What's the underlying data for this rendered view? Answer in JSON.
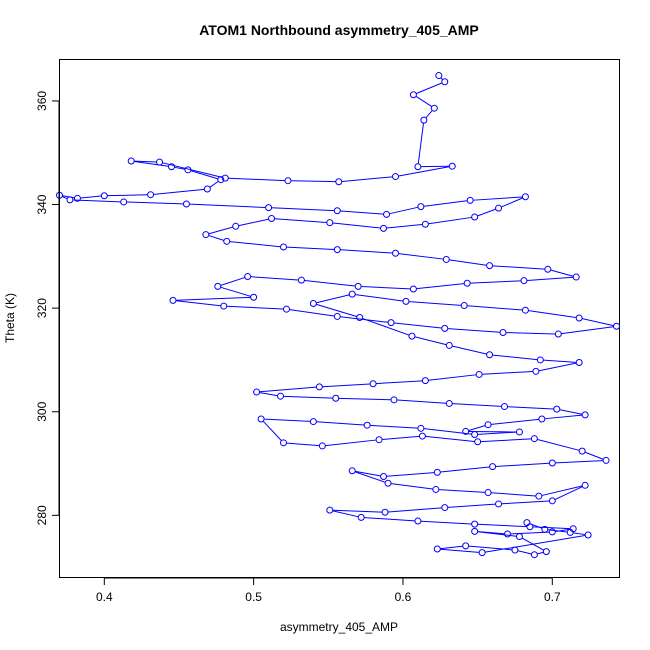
{
  "chart_data": {
    "type": "scatter",
    "title": "ATOM1 Northbound asymmetry_405_AMP",
    "xlabel": "asymmetry_405_AMP",
    "ylabel": "Theta (K)",
    "xlim": [
      0.37,
      0.745
    ],
    "ylim": [
      268,
      368
    ],
    "x_ticks": [
      0.4,
      0.5,
      0.6,
      0.7
    ],
    "x_tick_labels": [
      "0.4",
      "0.5",
      "0.6",
      "0.7"
    ],
    "y_ticks": [
      280,
      300,
      320,
      340,
      360
    ],
    "y_tick_labels": [
      "280",
      "300",
      "320",
      "340",
      "360"
    ],
    "grid": false,
    "style": "points connected by lines, open circle markers",
    "color": "#0000ff",
    "series": [
      {
        "points": [
          [
            0.624,
            364.9
          ],
          [
            0.628,
            363.7
          ],
          [
            0.607,
            361.2
          ],
          [
            0.621,
            358.6
          ],
          [
            0.614,
            356.3
          ],
          [
            0.61,
            347.3
          ],
          [
            0.633,
            347.4
          ],
          [
            0.595,
            345.4
          ],
          [
            0.557,
            344.4
          ],
          [
            0.523,
            344.6
          ],
          [
            0.481,
            345.1
          ],
          [
            0.437,
            348.2
          ],
          [
            0.418,
            348.4
          ],
          [
            0.445,
            347.3
          ],
          [
            0.456,
            346.7
          ],
          [
            0.478,
            344.8
          ],
          [
            0.469,
            343.0
          ],
          [
            0.431,
            341.9
          ],
          [
            0.4,
            341.7
          ],
          [
            0.382,
            341.2
          ],
          [
            0.37,
            341.8
          ],
          [
            0.377,
            340.9
          ],
          [
            0.413,
            340.5
          ],
          [
            0.455,
            340.1
          ],
          [
            0.51,
            339.4
          ],
          [
            0.556,
            338.8
          ],
          [
            0.589,
            338.1
          ],
          [
            0.612,
            339.6
          ],
          [
            0.645,
            340.8
          ],
          [
            0.682,
            341.5
          ],
          [
            0.664,
            339.3
          ],
          [
            0.648,
            337.6
          ],
          [
            0.615,
            336.2
          ],
          [
            0.587,
            335.4
          ],
          [
            0.551,
            336.5
          ],
          [
            0.512,
            337.3
          ],
          [
            0.488,
            335.8
          ],
          [
            0.468,
            334.2
          ],
          [
            0.482,
            332.9
          ],
          [
            0.52,
            331.8
          ],
          [
            0.556,
            331.3
          ],
          [
            0.595,
            330.6
          ],
          [
            0.629,
            329.4
          ],
          [
            0.658,
            328.2
          ],
          [
            0.697,
            327.5
          ],
          [
            0.716,
            326.0
          ],
          [
            0.681,
            325.3
          ],
          [
            0.643,
            324.8
          ],
          [
            0.607,
            323.7
          ],
          [
            0.57,
            324.2
          ],
          [
            0.532,
            325.4
          ],
          [
            0.496,
            326.1
          ],
          [
            0.476,
            324.2
          ],
          [
            0.5,
            322.1
          ],
          [
            0.446,
            321.5
          ],
          [
            0.48,
            320.4
          ],
          [
            0.522,
            319.8
          ],
          [
            0.556,
            318.4
          ],
          [
            0.592,
            317.2
          ],
          [
            0.628,
            316.1
          ],
          [
            0.667,
            315.3
          ],
          [
            0.704,
            315.0
          ],
          [
            0.743,
            316.5
          ],
          [
            0.718,
            318.1
          ],
          [
            0.682,
            319.6
          ],
          [
            0.641,
            320.5
          ],
          [
            0.602,
            321.3
          ],
          [
            0.566,
            322.7
          ],
          [
            0.54,
            320.9
          ],
          [
            0.571,
            318.2
          ],
          [
            0.606,
            314.6
          ],
          [
            0.631,
            312.8
          ],
          [
            0.658,
            311.0
          ],
          [
            0.692,
            310.0
          ],
          [
            0.718,
            309.5
          ],
          [
            0.689,
            307.8
          ],
          [
            0.651,
            307.2
          ],
          [
            0.615,
            306.0
          ],
          [
            0.58,
            305.4
          ],
          [
            0.544,
            304.8
          ],
          [
            0.502,
            303.8
          ],
          [
            0.518,
            303.0
          ],
          [
            0.555,
            302.6
          ],
          [
            0.594,
            302.3
          ],
          [
            0.631,
            301.6
          ],
          [
            0.668,
            301.0
          ],
          [
            0.703,
            300.5
          ],
          [
            0.722,
            299.4
          ],
          [
            0.693,
            298.6
          ],
          [
            0.657,
            297.5
          ],
          [
            0.642,
            296.2
          ],
          [
            0.678,
            296.1
          ],
          [
            0.648,
            295.6
          ],
          [
            0.612,
            296.8
          ],
          [
            0.576,
            297.4
          ],
          [
            0.54,
            298.1
          ],
          [
            0.505,
            298.6
          ],
          [
            0.52,
            294.0
          ],
          [
            0.546,
            293.4
          ],
          [
            0.584,
            294.6
          ],
          [
            0.613,
            295.3
          ],
          [
            0.65,
            294.2
          ],
          [
            0.688,
            294.8
          ],
          [
            0.72,
            292.4
          ],
          [
            0.736,
            290.6
          ],
          [
            0.7,
            290.1
          ],
          [
            0.66,
            289.4
          ],
          [
            0.623,
            288.3
          ],
          [
            0.587,
            287.5
          ],
          [
            0.566,
            288.6
          ],
          [
            0.59,
            286.2
          ],
          [
            0.622,
            285.0
          ],
          [
            0.657,
            284.4
          ],
          [
            0.691,
            283.7
          ],
          [
            0.722,
            285.8
          ],
          [
            0.7,
            282.8
          ],
          [
            0.664,
            282.2
          ],
          [
            0.628,
            281.5
          ],
          [
            0.588,
            280.6
          ],
          [
            0.551,
            281.0
          ],
          [
            0.572,
            279.6
          ],
          [
            0.61,
            278.9
          ],
          [
            0.648,
            278.3
          ],
          [
            0.685,
            277.8
          ],
          [
            0.714,
            277.4
          ],
          [
            0.7,
            276.8
          ],
          [
            0.67,
            276.4
          ],
          [
            0.648,
            276.9
          ],
          [
            0.678,
            275.9
          ],
          [
            0.696,
            273.0
          ],
          [
            0.688,
            272.4
          ],
          [
            0.675,
            273.3
          ],
          [
            0.642,
            274.1
          ],
          [
            0.623,
            273.5
          ],
          [
            0.653,
            272.8
          ],
          [
            0.724,
            276.2
          ],
          [
            0.712,
            276.7
          ],
          [
            0.695,
            277.3
          ],
          [
            0.683,
            278.6
          ]
        ]
      }
    ]
  }
}
